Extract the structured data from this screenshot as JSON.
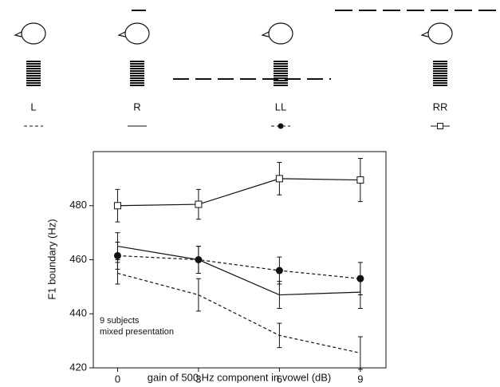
{
  "chart_data": {
    "type": "line",
    "xlabel": "gain of 500 Hz component in vowel (dB)",
    "ylabel": "F1 boundary (Hz)",
    "annotations": [
      "9 subjects",
      "mixed presentation"
    ],
    "x": [
      0,
      3,
      6,
      9
    ],
    "xlim": [
      -0.9,
      9.95
    ],
    "xticks": [
      0,
      3,
      6,
      9
    ],
    "ylim": [
      420,
      500
    ],
    "yticks": [
      420,
      440,
      460,
      480
    ],
    "series": [
      {
        "name": "L",
        "color": "#111111",
        "dash": true,
        "marker": "none",
        "values": [
          455,
          447,
          432,
          425.5
        ],
        "errors": [
          4,
          6,
          4.5,
          6
        ]
      },
      {
        "name": "R",
        "color": "#111111",
        "dash": false,
        "marker": "none",
        "values": [
          465,
          460,
          447,
          448
        ],
        "errors": [
          5,
          5,
          5,
          6
        ]
      },
      {
        "name": "LL",
        "color": "#111111",
        "dash": true,
        "marker": "circle",
        "values": [
          461.5,
          460,
          456,
          453
        ],
        "errors": [
          5,
          5,
          5,
          6
        ]
      },
      {
        "name": "RR",
        "color": "#111111",
        "dash": false,
        "marker": "square",
        "values": [
          480,
          480.5,
          490,
          489.5
        ],
        "errors": [
          6,
          5.5,
          6,
          8
        ]
      }
    ]
  }
}
